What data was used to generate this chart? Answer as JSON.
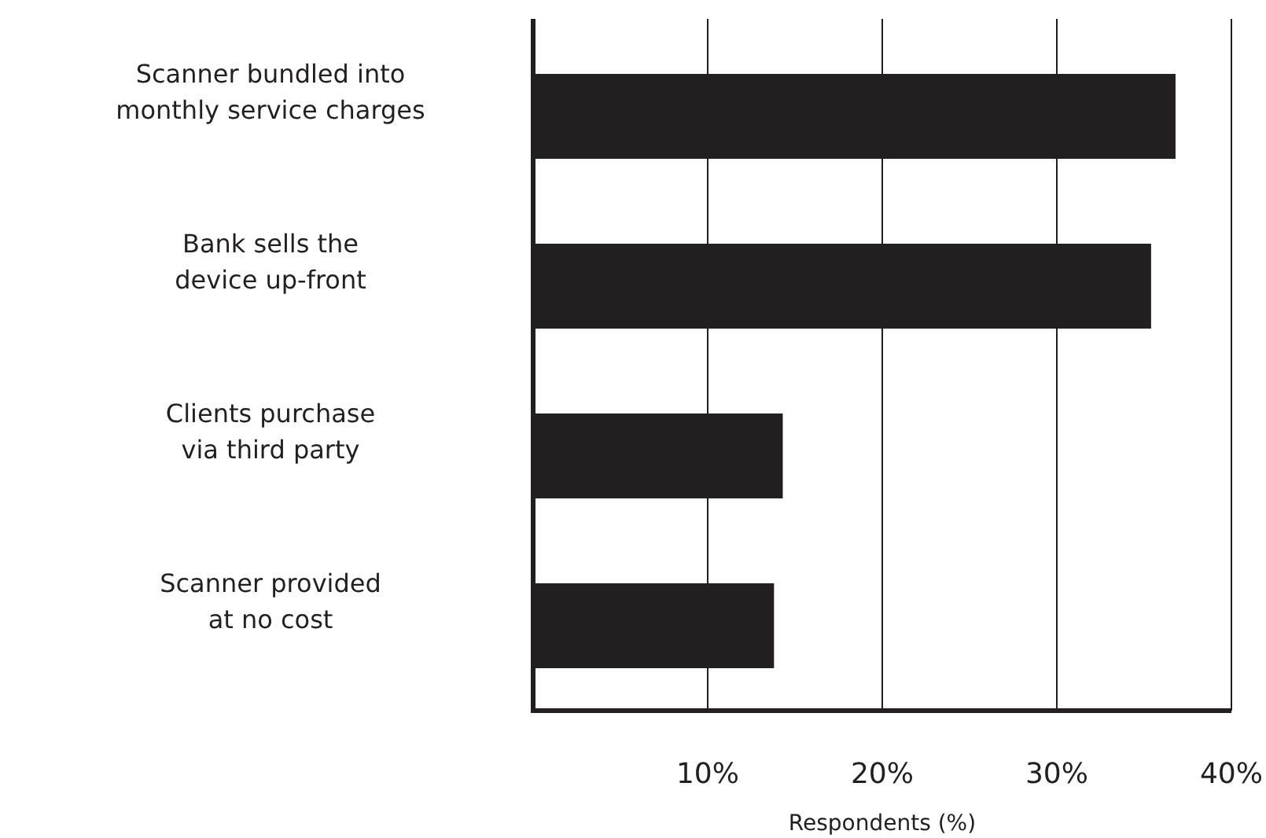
{
  "chart_data": {
    "type": "bar",
    "orientation": "horizontal",
    "xlabel": "Respondents (%)",
    "categories": [
      "Scanner bundled into\nmonthly service charges",
      "Bank sells the\ndevice up-front",
      "Clients purchase\nvia third party",
      "Scanner provided\nat no cost"
    ],
    "values": [
      36.8,
      35.4,
      14.3,
      13.8
    ],
    "color": "#231f20",
    "xlim": [
      0,
      40
    ],
    "xticks": [
      {
        "value": 10,
        "label": "10%"
      },
      {
        "value": 20,
        "label": "20%"
      },
      {
        "value": 30,
        "label": "30%"
      },
      {
        "value": 40,
        "label": "40%"
      }
    ],
    "grid": "x"
  }
}
